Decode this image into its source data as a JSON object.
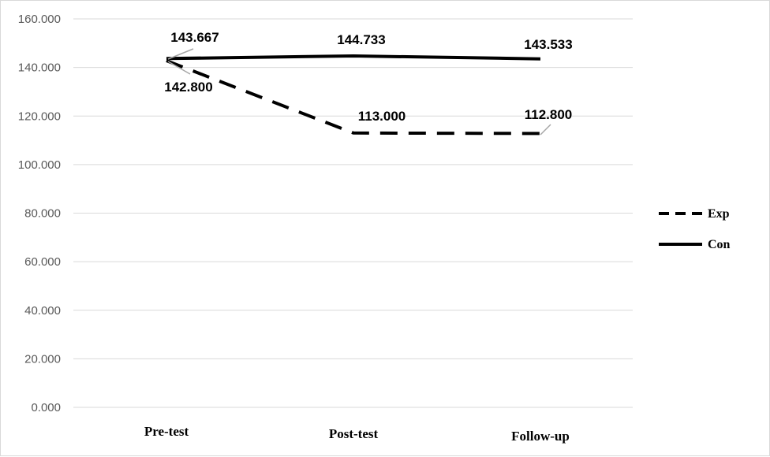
{
  "chart_data": {
    "type": "line",
    "categories": [
      "Pre-test",
      "Post-test",
      "Follow-up"
    ],
    "series": [
      {
        "name": "Exp",
        "values": [
          142.8,
          113.0,
          112.8
        ],
        "line_style": "dashed",
        "color": "#000000",
        "labels": [
          "142.800",
          "113.000",
          "112.800"
        ]
      },
      {
        "name": "Con",
        "values": [
          143.667,
          144.733,
          143.533
        ],
        "line_style": "solid",
        "color": "#000000",
        "labels": [
          "143.667",
          "144.733",
          "143.533"
        ]
      }
    ],
    "ylim": [
      0,
      160
    ],
    "yticks": [
      0,
      20,
      40,
      60,
      80,
      100,
      120,
      140,
      160
    ],
    "ytick_labels": [
      "0.000",
      "20.000",
      "40.000",
      "60.000",
      "80.000",
      "100.000",
      "120.000",
      "140.000",
      "160.000"
    ],
    "grid": true,
    "legend_position": "right",
    "gridline_color": "#d9d9d9",
    "tick_label_color": "#595959",
    "leader_line_color": "#a6a6a6"
  }
}
